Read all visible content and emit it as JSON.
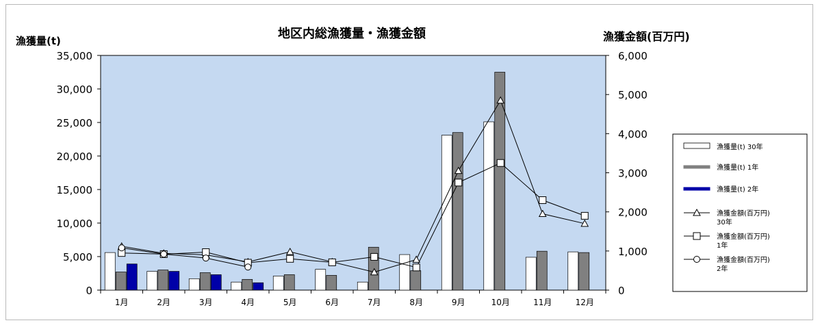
{
  "chart_data": {
    "type": "bar",
    "title": "地区内総漁獲量・漁獲金額",
    "ylabel": "漁獲量(t)",
    "y2label": "漁獲金額(百万円)",
    "categories": [
      "1月",
      "2月",
      "3月",
      "4月",
      "5月",
      "6月",
      "7月",
      "8月",
      "9月",
      "10月",
      "11月",
      "12月"
    ],
    "ylim": [
      0,
      35000
    ],
    "yticks": [
      "0",
      "5,000",
      "10,000",
      "15,000",
      "20,000",
      "25,000",
      "30,000",
      "35,000"
    ],
    "y2lim": [
      0,
      6000
    ],
    "y2ticks": [
      "0",
      "1,000",
      "2,000",
      "3,000",
      "4,000",
      "5,000",
      "6,000"
    ],
    "plot_background": "#c5d9f1",
    "grid": false,
    "legend_position": "right",
    "bar_series": [
      {
        "name": "漁獲量(t) 30年",
        "color": "#ffffff",
        "values": [
          5600,
          2800,
          1700,
          1200,
          2100,
          3100,
          1200,
          5300,
          23100,
          25100,
          4900,
          5700
        ]
      },
      {
        "name": "漁獲量(t) 1年",
        "color": "#808080",
        "values": [
          2700,
          3000,
          2600,
          1600,
          2300,
          2200,
          6400,
          2900,
          23500,
          32500,
          5800,
          5600
        ]
      },
      {
        "name": "漁獲量(t) 2年",
        "color": "#0000a8",
        "values": [
          3900,
          2800,
          2300,
          1100,
          null,
          null,
          null,
          null,
          null,
          null,
          null,
          null
        ]
      }
    ],
    "line_series": [
      {
        "name": "漁獲金額(百万円) 30年",
        "marker": "triangle",
        "values": [
          1120,
          940,
          900,
          720,
          980,
          720,
          460,
          780,
          3050,
          4850,
          1950,
          1700
        ]
      },
      {
        "name": "漁獲金額(百万円) 1年",
        "marker": "square",
        "values": [
          950,
          920,
          970,
          700,
          800,
          710,
          850,
          580,
          2750,
          3250,
          2300,
          1900
        ]
      },
      {
        "name": "漁獲金額(百万円) 2年",
        "marker": "circle",
        "values": [
          1080,
          920,
          820,
          590,
          null,
          null,
          null,
          null,
          null,
          null,
          null,
          null
        ]
      }
    ],
    "legend": [
      {
        "label": "漁獲量(t) 30年",
        "kind": "bar",
        "series": "bar0"
      },
      {
        "label": "漁獲量(t) 1年",
        "kind": "bar",
        "series": "bar1"
      },
      {
        "label": "漁獲量(t) 2年",
        "kind": "bar",
        "series": "bar2"
      },
      {
        "label": "漁獲金額(百万円)",
        "label2": "30年",
        "kind": "line",
        "marker": "triangle"
      },
      {
        "label": "漁獲金額(百万円)",
        "label2": "1年",
        "kind": "line",
        "marker": "square"
      },
      {
        "label": "漁獲金額(百万円)",
        "label2": "2年",
        "kind": "line",
        "marker": "circle"
      }
    ]
  }
}
